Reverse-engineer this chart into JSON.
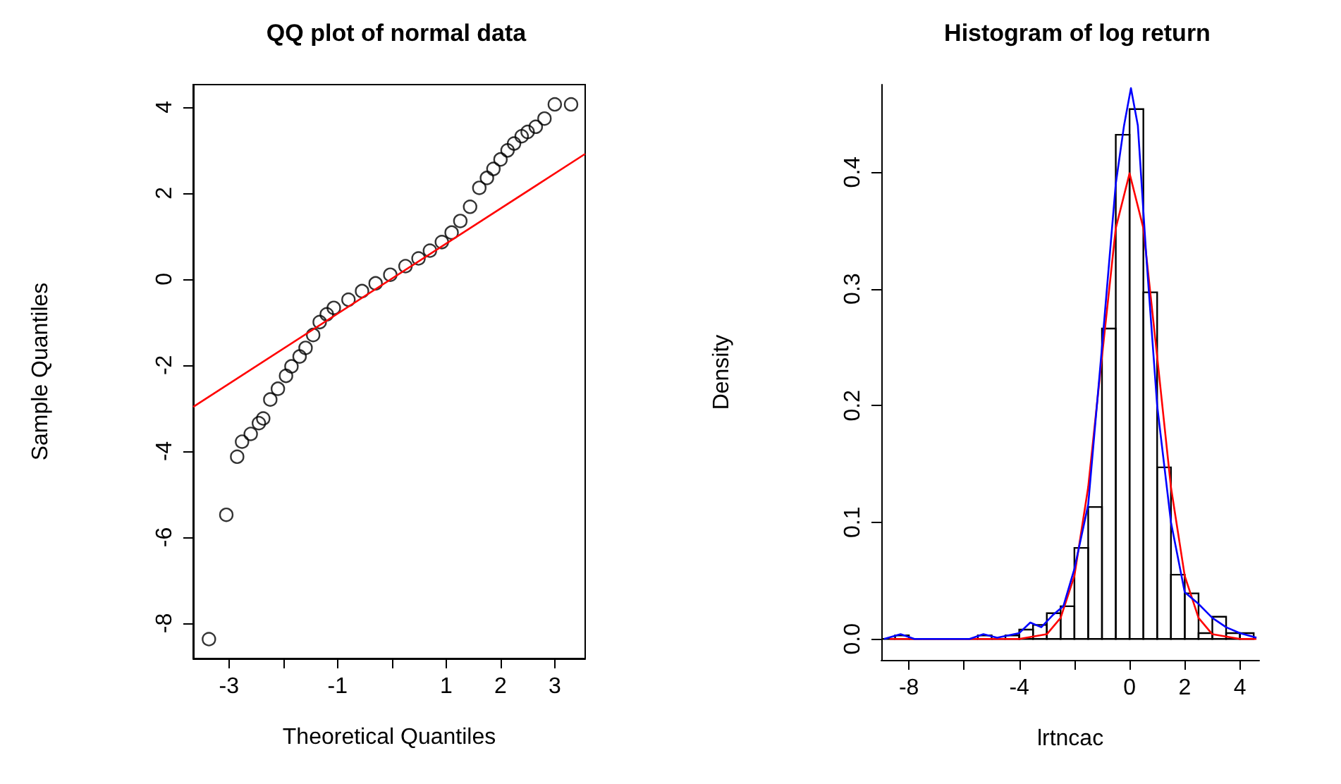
{
  "chart_data": [
    {
      "type": "scatter",
      "title": "QQ plot of normal data",
      "xlabel": "Theoretical Quantiles",
      "ylabel": "Sample Quantiles",
      "xlim": [
        -3.66,
        3.56
      ],
      "ylim": [
        -8.82,
        4.52
      ],
      "xticks": [
        -3,
        {
          "value": -2,
          "label": null
        },
        -1,
        {
          "value": 0,
          "label": null
        },
        1,
        2,
        3
      ],
      "yticks": [
        -8,
        -6,
        -4,
        -2,
        0,
        2,
        4
      ],
      "grid": false,
      "series": [
        {
          "type": "scatter",
          "marker": "circle",
          "color": "#000000",
          "x": [
            -3.37,
            -3.05,
            -2.85,
            -2.76,
            -2.6,
            -2.45,
            -2.37,
            -2.24,
            -2.1,
            -1.95,
            -1.85,
            -1.7,
            -1.59,
            -1.45,
            -1.33,
            -1.2,
            -1.07,
            -0.8,
            -0.55,
            -0.3,
            -0.03,
            0.25,
            0.49,
            0.7,
            0.92,
            1.1,
            1.26,
            1.44,
            1.61,
            1.75,
            1.87,
            2.0,
            2.13,
            2.25,
            2.39,
            2.5,
            2.65,
            2.81,
            3.0,
            3.3
          ],
          "values": [
            -8.37,
            -5.48,
            -4.13,
            -3.78,
            -3.6,
            -3.35,
            -3.24,
            -2.8,
            -2.55,
            -2.25,
            -2.03,
            -1.8,
            -1.6,
            -1.3,
            -1.0,
            -0.82,
            -0.67,
            -0.48,
            -0.28,
            -0.1,
            0.1,
            0.3,
            0.48,
            0.66,
            0.86,
            1.08,
            1.35,
            1.68,
            2.12,
            2.35,
            2.56,
            2.78,
            2.99,
            3.15,
            3.32,
            3.42,
            3.54,
            3.73,
            4.06,
            4.06
          ]
        },
        {
          "type": "line",
          "color": "#ff0000",
          "x": [
            -3.66,
            3.56
          ],
          "values": [
            -2.97,
            2.91
          ]
        }
      ]
    },
    {
      "type": "histogram",
      "title": "Histogram of log return",
      "xlabel": "lrtncac",
      "ylabel": "Density",
      "xlim": [
        -9,
        4.7
      ],
      "ylim": [
        -0.018,
        0.475
      ],
      "xticks": [
        -8,
        {
          "value": -6,
          "label": null
        },
        -4,
        {
          "value": -2,
          "label": null
        },
        0,
        2,
        4
      ],
      "yticks": [
        {
          "value": 0,
          "label": "0.0"
        },
        0.1,
        0.2,
        0.3,
        0.4
      ],
      "grid": false,
      "color": "#000000",
      "bins": [
        -9,
        -8.5,
        -8,
        -7.5,
        -7,
        -6.5,
        -6,
        -5.5,
        -5,
        -4.5,
        -4,
        -3.5,
        -3,
        -2.5,
        -2,
        -1.5,
        -1,
        -0.5,
        0,
        0.5,
        1,
        1.5,
        2,
        2.5,
        3,
        3.5,
        4,
        4.5
      ],
      "values": [
        0,
        0.003,
        0,
        0,
        0,
        0,
        0,
        0.003,
        0,
        0.003,
        0.008,
        0.012,
        0.022,
        0.028,
        0.078,
        0.113,
        0.266,
        0.432,
        0.454,
        0.297,
        0.147,
        0.055,
        0.039,
        0.005,
        0.019,
        0.005,
        0.005
      ],
      "series": [
        {
          "type": "line",
          "color": "#ff0000",
          "x": [
            -8.7,
            -4,
            -3,
            -2.5,
            -2,
            -1.5,
            -1,
            -0.5,
            0,
            0.5,
            1,
            1.5,
            2,
            2.5,
            3,
            4,
            4.6
          ],
          "values": [
            0,
            0,
            0.004,
            0.018,
            0.054,
            0.13,
            0.242,
            0.352,
            0.399,
            0.352,
            0.242,
            0.13,
            0.054,
            0.018,
            0.004,
            0,
            0
          ]
        },
        {
          "type": "line",
          "color": "#0000ff",
          "x": [
            -8.9,
            -8.3,
            -7.8,
            -5.8,
            -5.3,
            -4.8,
            -4,
            -3.6,
            -3.2,
            -2.8,
            -2.4,
            -2,
            -1.5,
            -1,
            -0.5,
            -0.2,
            0.05,
            0.3,
            0.6,
            1,
            1.5,
            2,
            2.5,
            3,
            3.5,
            4,
            4.6
          ],
          "values": [
            0,
            0.004,
            0,
            0,
            0.004,
            0.001,
            0.005,
            0.014,
            0.01,
            0.02,
            0.028,
            0.06,
            0.115,
            0.25,
            0.39,
            0.44,
            0.472,
            0.44,
            0.33,
            0.2,
            0.1,
            0.04,
            0.03,
            0.018,
            0.01,
            0.005,
            0.001
          ]
        }
      ]
    }
  ]
}
